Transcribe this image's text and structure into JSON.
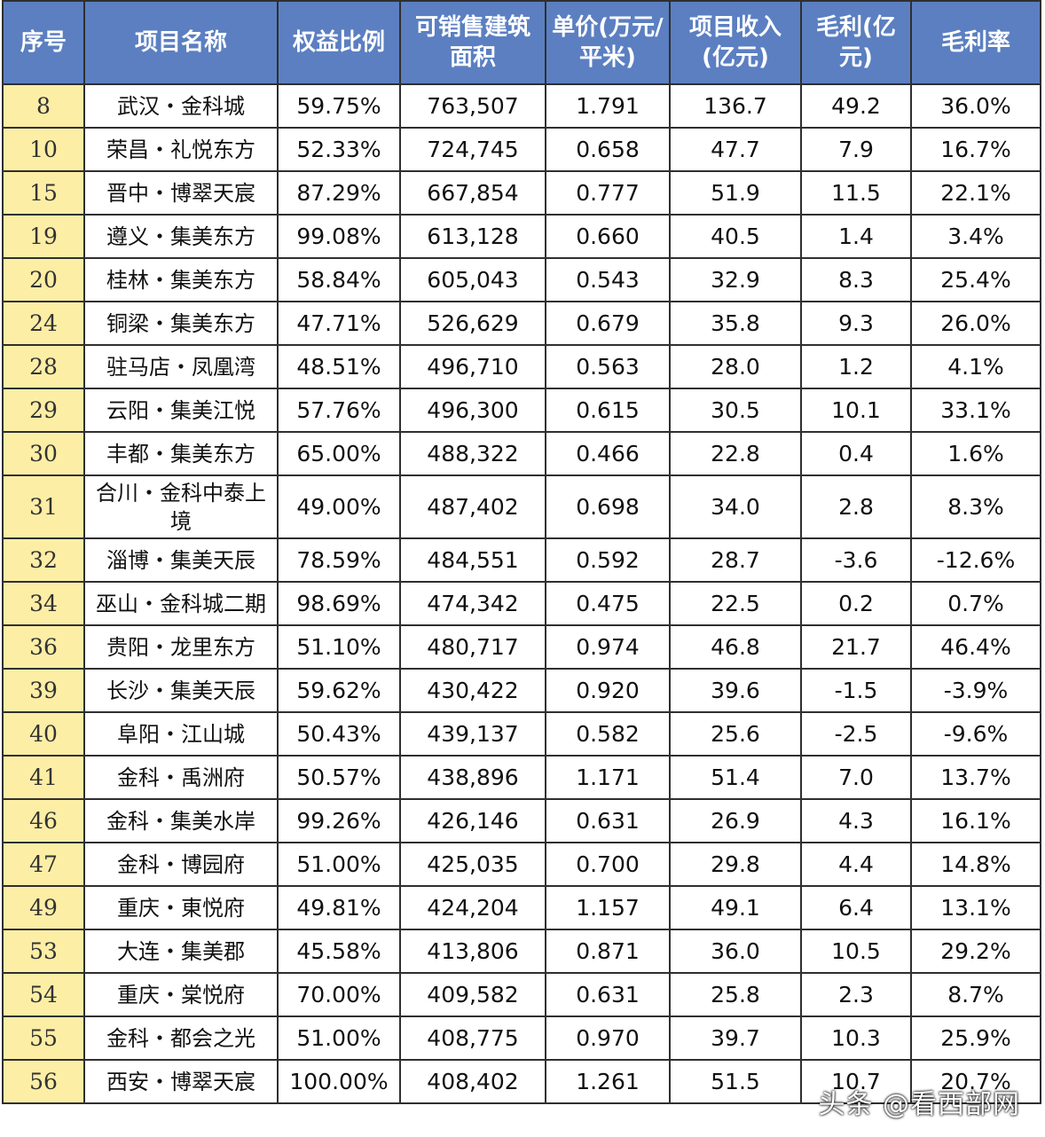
{
  "headers": [
    "序号",
    "项目名称",
    "权益比例",
    "可销售建筑面积",
    "单价(万元/平米)",
    "项目收入(亿元)",
    "毛利(亿元)",
    "毛利率"
  ],
  "rows": [
    [
      "8",
      "武汉・金科城",
      "59.75%",
      "763,507",
      "1.791",
      "136.7",
      "49.2",
      "36.0%"
    ],
    [
      "10",
      "荣昌・礼悦东方",
      "52.33%",
      "724,745",
      "0.658",
      "47.7",
      "7.9",
      "16.7%"
    ],
    [
      "15",
      "晋中・博翠天宸",
      "87.29%",
      "667,854",
      "0.777",
      "51.9",
      "11.5",
      "22.1%"
    ],
    [
      "19",
      "遵义・集美东方",
      "99.08%",
      "613,128",
      "0.660",
      "40.5",
      "1.4",
      "3.4%"
    ],
    [
      "20",
      "桂林・集美东方",
      "58.84%",
      "605,043",
      "0.543",
      "32.9",
      "8.3",
      "25.4%"
    ],
    [
      "24",
      "铜梁・集美东方",
      "47.71%",
      "526,629",
      "0.679",
      "35.8",
      "9.3",
      "26.0%"
    ],
    [
      "28",
      "驻马店・凤凰湾",
      "48.51%",
      "496,710",
      "0.563",
      "28.0",
      "1.2",
      "4.1%"
    ],
    [
      "29",
      "云阳・集美江悦",
      "57.76%",
      "496,300",
      "0.615",
      "30.5",
      "10.1",
      "33.1%"
    ],
    [
      "30",
      "丰都・集美东方",
      "65.00%",
      "488,322",
      "0.466",
      "22.8",
      "0.4",
      "1.6%"
    ],
    [
      "31",
      "合川・金科中泰上境",
      "49.00%",
      "487,402",
      "0.698",
      "34.0",
      "2.8",
      "8.3%"
    ],
    [
      "32",
      "淄博・集美天辰",
      "78.59%",
      "484,551",
      "0.592",
      "28.7",
      "-3.6",
      "-12.6%"
    ],
    [
      "34",
      "巫山・金科城二期",
      "98.69%",
      "474,342",
      "0.475",
      "22.5",
      "0.2",
      "0.7%"
    ],
    [
      "36",
      "贵阳・龙里东方",
      "51.10%",
      "480,717",
      "0.974",
      "46.8",
      "21.7",
      "46.4%"
    ],
    [
      "39",
      "长沙・集美天辰",
      "59.62%",
      "430,422",
      "0.920",
      "39.6",
      "-1.5",
      "-3.9%"
    ],
    [
      "40",
      "阜阳・江山城",
      "50.43%",
      "439,137",
      "0.582",
      "25.6",
      "-2.5",
      "-9.6%"
    ],
    [
      "41",
      "金科・禹洲府",
      "50.57%",
      "438,896",
      "1.171",
      "51.4",
      "7.0",
      "13.7%"
    ],
    [
      "46",
      "金科・集美水岸",
      "99.26%",
      "426,146",
      "0.631",
      "26.9",
      "4.3",
      "16.1%"
    ],
    [
      "47",
      "金科・博园府",
      "51.00%",
      "425,035",
      "0.700",
      "29.8",
      "4.4",
      "14.8%"
    ],
    [
      "49",
      "重庆・東悦府",
      "49.81%",
      "424,204",
      "1.157",
      "49.1",
      "6.4",
      "13.1%"
    ],
    [
      "53",
      "大连・集美郡",
      "45.58%",
      "413,806",
      "0.871",
      "36.0",
      "10.5",
      "29.2%"
    ],
    [
      "54",
      "重庆・棠悦府",
      "70.00%",
      "409,582",
      "0.631",
      "25.8",
      "2.3",
      "8.7%"
    ],
    [
      "55",
      "金科・都会之光",
      "51.00%",
      "408,775",
      "0.970",
      "39.7",
      "10.3",
      "25.9%"
    ],
    [
      "56",
      "西安・博翠天宸",
      "100.00%",
      "408,402",
      "1.261",
      "51.5",
      "10.7",
      "20.7%"
    ]
  ],
  "watermark": "头条 @看西部网"
}
